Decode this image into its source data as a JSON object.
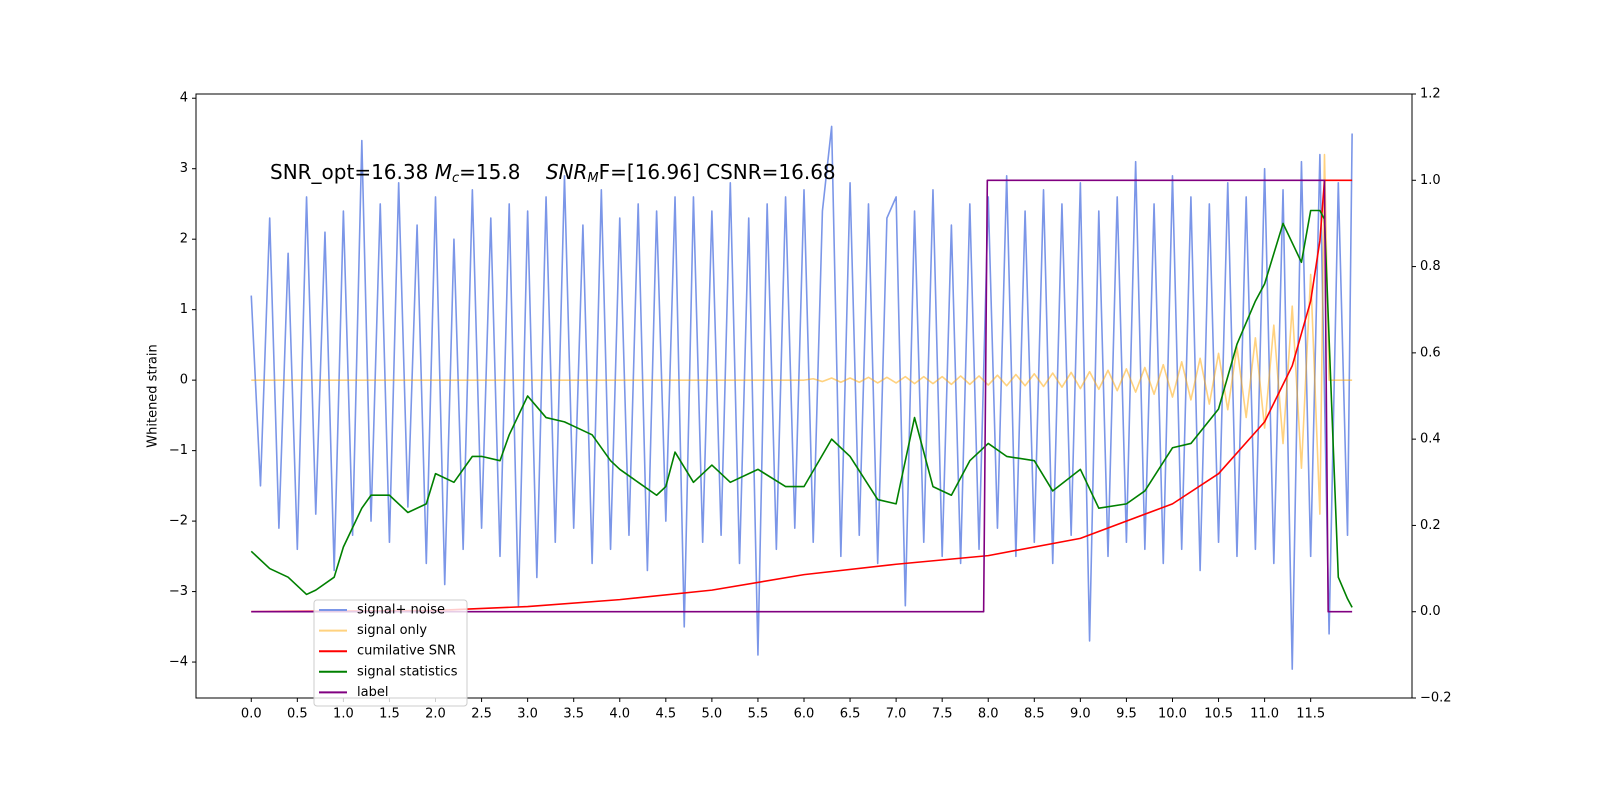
{
  "chart_data": {
    "type": "line",
    "annotation": [
      "SNR_opt=16.38 ",
      "M",
      "c",
      "=15.8    ",
      "SNR",
      "M",
      "F=[16.96] CSNR=16.68"
    ],
    "ylabel": "Whitened strain",
    "xlim": [
      -0.6,
      12.6
    ],
    "ylim": [
      -4.51,
      4.06
    ],
    "y2lim": [
      -0.2,
      1.2
    ],
    "xticks": [
      {
        "value": 0,
        "label": "0.0"
      },
      0.5,
      {
        "value": 1,
        "label": "1.0"
      },
      1.5,
      {
        "value": 2,
        "label": "2.0"
      },
      2.5,
      {
        "value": 3,
        "label": "3.0"
      },
      3.5,
      {
        "value": 4,
        "label": "4.0"
      },
      4.5,
      {
        "value": 5,
        "label": "5.0"
      },
      5.5,
      {
        "value": 6,
        "label": "6.0"
      },
      6.5,
      {
        "value": 7,
        "label": "7.0"
      },
      7.5,
      {
        "value": 8,
        "label": "8.0"
      },
      8.5,
      {
        "value": 9,
        "label": "9.0"
      },
      9.5,
      {
        "value": 10,
        "label": "10.0"
      },
      10.5,
      {
        "value": 11,
        "label": "11.0"
      },
      11.5
    ],
    "yticks": [
      {
        "value": -4,
        "label": "−4"
      },
      {
        "value": -3,
        "label": "−3"
      },
      {
        "value": -2,
        "label": "−2"
      },
      {
        "value": -1,
        "label": "−1"
      },
      0,
      1,
      2,
      3,
      4
    ],
    "y2ticks": [
      {
        "value": -0.2,
        "label": "−0.2"
      },
      {
        "value": 0,
        "label": "0.0"
      },
      0.2,
      0.4,
      0.6,
      0.8,
      {
        "value": 1,
        "label": "1.0"
      },
      1.2
    ],
    "series": [
      {
        "name": "signal+ noise",
        "color": "#7b96e8",
        "opacity": 1,
        "x": [
          0.0,
          0.1,
          0.2,
          0.3,
          0.4,
          0.5,
          0.6,
          0.7,
          0.8,
          0.9,
          1.0,
          1.1,
          1.2,
          1.3,
          1.4,
          1.5,
          1.6,
          1.7,
          1.8,
          1.9,
          2.0,
          2.1,
          2.2,
          2.3,
          2.4,
          2.5,
          2.6,
          2.7,
          2.8,
          2.9,
          3.0,
          3.1,
          3.2,
          3.3,
          3.4,
          3.5,
          3.6,
          3.7,
          3.8,
          3.9,
          4.0,
          4.1,
          4.2,
          4.3,
          4.4,
          4.5,
          4.6,
          4.7,
          4.8,
          4.9,
          5.0,
          5.1,
          5.2,
          5.3,
          5.4,
          5.5,
          5.6,
          5.7,
          5.8,
          5.9,
          6.0,
          6.1,
          6.2,
          6.3,
          6.4,
          6.5,
          6.6,
          6.7,
          6.8,
          6.9,
          7.0,
          7.1,
          7.2,
          7.3,
          7.4,
          7.5,
          7.6,
          7.7,
          7.8,
          7.9,
          8.0,
          8.1,
          8.2,
          8.3,
          8.4,
          8.5,
          8.6,
          8.7,
          8.8,
          8.9,
          9.0,
          9.1,
          9.2,
          9.3,
          9.4,
          9.5,
          9.6,
          9.7,
          9.8,
          9.9,
          10.0,
          10.1,
          10.2,
          10.3,
          10.4,
          10.5,
          10.6,
          10.7,
          10.8,
          10.9,
          11.0,
          11.1,
          11.2,
          11.3,
          11.4,
          11.5,
          11.6,
          11.7,
          11.8,
          11.9,
          11.95
        ],
        "values": [
          1.2,
          -1.5,
          2.3,
          -2.1,
          1.8,
          -2.4,
          2.6,
          -1.9,
          2.1,
          -2.7,
          2.4,
          -2.2,
          3.4,
          -2.0,
          2.5,
          -2.3,
          2.8,
          -1.8,
          2.2,
          -2.6,
          2.6,
          -2.9,
          2.0,
          -2.4,
          2.7,
          -2.1,
          2.3,
          -2.5,
          2.5,
          -3.2,
          2.4,
          -2.8,
          2.6,
          -2.3,
          2.9,
          -2.1,
          2.2,
          -2.6,
          2.7,
          -2.4,
          2.3,
          -2.2,
          2.5,
          -2.7,
          2.4,
          -2.0,
          2.6,
          -3.5,
          2.6,
          -2.3,
          2.4,
          -2.2,
          2.8,
          -2.6,
          2.3,
          -3.9,
          2.5,
          -2.4,
          2.6,
          -2.1,
          2.7,
          -2.3,
          2.4,
          3.6,
          -2.5,
          2.8,
          -2.2,
          2.5,
          -2.6,
          2.3,
          2.6,
          -3.2,
          2.4,
          -2.3,
          2.7,
          -2.5,
          2.2,
          -2.6,
          2.5,
          -2.4,
          2.6,
          -2.1,
          2.9,
          -2.5,
          2.4,
          -2.3,
          2.7,
          -2.6,
          2.5,
          -2.2,
          2.8,
          -3.7,
          2.4,
          -2.5,
          2.6,
          -2.3,
          3.1,
          -2.4,
          2.5,
          -2.6,
          2.9,
          -2.4,
          2.6,
          -2.7,
          2.5,
          -2.3,
          2.8,
          -2.5,
          2.6,
          -2.4,
          3.0,
          -2.6,
          2.7,
          -4.1,
          3.1,
          -2.5,
          3.2,
          -3.6,
          2.8,
          -2.2,
          3.5
        ]
      },
      {
        "name": "signal only",
        "color": "#ffa500",
        "opacity": 0.5,
        "x": [
          0,
          1,
          2,
          3,
          4,
          5,
          6.0,
          6.1,
          6.2,
          6.3,
          6.4,
          6.5,
          6.6,
          6.7,
          6.8,
          6.9,
          7.0,
          7.1,
          7.2,
          7.3,
          7.4,
          7.5,
          7.6,
          7.7,
          7.8,
          7.9,
          8.0,
          8.1,
          8.2,
          8.3,
          8.4,
          8.5,
          8.6,
          8.7,
          8.8,
          8.9,
          9.0,
          9.1,
          9.2,
          9.3,
          9.4,
          9.5,
          9.6,
          9.7,
          9.8,
          9.9,
          10.0,
          10.1,
          10.2,
          10.3,
          10.4,
          10.5,
          10.6,
          10.7,
          10.8,
          10.9,
          11.0,
          11.1,
          11.2,
          11.3,
          11.4,
          11.5,
          11.6,
          11.65,
          11.7,
          11.95
        ],
        "values": [
          0,
          0,
          0,
          0,
          0,
          0,
          0,
          0.02,
          -0.02,
          0.03,
          -0.03,
          0.03,
          -0.03,
          0.04,
          -0.04,
          0.04,
          -0.04,
          0.05,
          -0.05,
          0.05,
          -0.05,
          0.05,
          -0.06,
          0.06,
          -0.06,
          0.06,
          -0.07,
          0.07,
          -0.08,
          0.08,
          -0.08,
          0.09,
          -0.09,
          0.1,
          -0.1,
          0.11,
          -0.12,
          0.12,
          -0.13,
          0.14,
          -0.15,
          0.16,
          -0.17,
          0.18,
          -0.2,
          0.22,
          -0.24,
          0.26,
          -0.28,
          0.31,
          -0.34,
          0.38,
          -0.42,
          0.47,
          -0.53,
          0.6,
          -0.68,
          0.78,
          -0.9,
          1.05,
          -1.25,
          1.5,
          -1.9,
          3.2,
          0,
          0
        ]
      },
      {
        "name": "cumilative SNR",
        "color": "#ff0000",
        "opacity": 1,
        "axis": "y2",
        "x": [
          0,
          2,
          3,
          4,
          5,
          6,
          7,
          8,
          9,
          10,
          10.5,
          11,
          11.3,
          11.5,
          11.6,
          11.65,
          11.95
        ],
        "values": [
          0,
          0.003,
          0.012,
          0.028,
          0.05,
          0.086,
          0.11,
          0.13,
          0.17,
          0.25,
          0.32,
          0.44,
          0.57,
          0.72,
          0.86,
          1.0,
          1.0
        ]
      },
      {
        "name": "signal statistics",
        "color": "#008000",
        "opacity": 1,
        "axis": "y2",
        "x": [
          0,
          0.2,
          0.4,
          0.5,
          0.6,
          0.7,
          0.9,
          1.0,
          1.2,
          1.3,
          1.5,
          1.7,
          1.9,
          2.0,
          2.2,
          2.4,
          2.5,
          2.7,
          2.8,
          3.0,
          3.2,
          3.4,
          3.5,
          3.7,
          3.9,
          4.0,
          4.2,
          4.4,
          4.5,
          4.6,
          4.8,
          5.0,
          5.2,
          5.5,
          5.8,
          6.0,
          6.3,
          6.5,
          6.8,
          7.0,
          7.2,
          7.4,
          7.6,
          7.8,
          8.0,
          8.2,
          8.5,
          8.7,
          9.0,
          9.2,
          9.5,
          9.7,
          10.0,
          10.2,
          10.5,
          10.7,
          10.9,
          11.0,
          11.2,
          11.4,
          11.5,
          11.6,
          11.65,
          11.8,
          11.9,
          11.95
        ],
        "values": [
          0.14,
          0.1,
          0.08,
          0.06,
          0.04,
          0.05,
          0.08,
          0.15,
          0.24,
          0.27,
          0.27,
          0.23,
          0.25,
          0.32,
          0.3,
          0.36,
          0.36,
          0.35,
          0.41,
          0.5,
          0.45,
          0.44,
          0.43,
          0.41,
          0.35,
          0.33,
          0.3,
          0.27,
          0.29,
          0.37,
          0.3,
          0.34,
          0.3,
          0.33,
          0.29,
          0.29,
          0.4,
          0.36,
          0.26,
          0.25,
          0.45,
          0.29,
          0.27,
          0.35,
          0.39,
          0.36,
          0.35,
          0.28,
          0.33,
          0.24,
          0.25,
          0.28,
          0.38,
          0.39,
          0.47,
          0.62,
          0.72,
          0.76,
          0.9,
          0.81,
          0.93,
          0.93,
          0.91,
          0.08,
          0.03,
          0.01
        ]
      },
      {
        "name": "label",
        "color": "#800080",
        "opacity": 1,
        "axis": "y2",
        "x": [
          0,
          7.95,
          7.99,
          11.65,
          11.69,
          11.95
        ],
        "values": [
          0,
          0,
          1,
          1,
          0,
          0
        ]
      }
    ]
  }
}
